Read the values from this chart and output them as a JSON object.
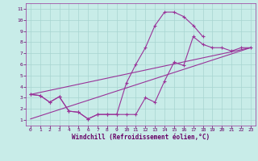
{
  "xlabel": "Windchill (Refroidissement éolien,°C)",
  "bg_color": "#c8ece8",
  "grid_color": "#a8d4d0",
  "line_color": "#993399",
  "xlim": [
    -0.5,
    23.5
  ],
  "ylim": [
    0.5,
    11.5
  ],
  "xticks": [
    0,
    1,
    2,
    3,
    4,
    5,
    6,
    7,
    8,
    9,
    10,
    11,
    12,
    13,
    14,
    15,
    16,
    17,
    18,
    19,
    20,
    21,
    22,
    23
  ],
  "yticks": [
    1,
    2,
    3,
    4,
    5,
    6,
    7,
    8,
    9,
    10,
    11
  ],
  "line1_x": [
    0,
    1,
    2,
    3,
    4,
    5,
    6,
    7,
    8,
    9,
    10,
    11,
    12,
    13,
    14,
    15,
    16,
    17,
    18,
    19,
    20,
    21,
    22,
    23
  ],
  "line1_y": [
    3.3,
    3.2,
    2.6,
    3.1,
    1.8,
    1.7,
    1.1,
    1.5,
    1.5,
    1.5,
    1.5,
    1.5,
    3.0,
    2.6,
    4.5,
    6.2,
    5.9,
    8.5,
    7.8,
    7.5,
    7.5,
    7.2,
    7.5,
    7.5
  ],
  "line2_x": [
    0,
    1,
    2,
    3,
    4,
    5,
    6,
    7,
    8,
    9,
    10,
    11,
    12,
    13,
    14,
    15,
    16,
    17,
    18
  ],
  "line2_y": [
    3.3,
    3.2,
    2.6,
    3.1,
    1.8,
    1.7,
    1.1,
    1.5,
    1.5,
    1.5,
    4.3,
    6.0,
    7.5,
    9.5,
    10.7,
    10.7,
    10.3,
    9.5,
    8.5
  ],
  "line3_x": [
    0,
    23
  ],
  "line3_y": [
    3.3,
    7.5
  ],
  "line4_x": [
    0,
    23
  ],
  "line4_y": [
    1.1,
    7.5
  ]
}
